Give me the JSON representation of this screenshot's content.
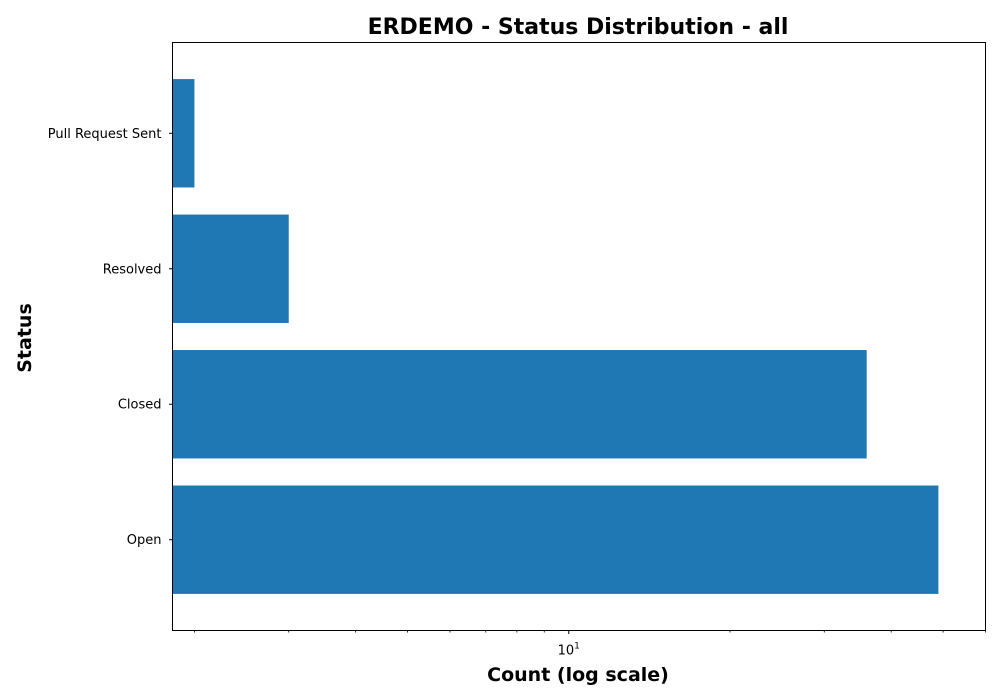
{
  "chart_data": {
    "type": "bar",
    "orientation": "horizontal",
    "title": "ERDEMO - Status Distribution - all",
    "xlabel": "Count (log scale)",
    "ylabel": "Status",
    "x_scale": "log",
    "xlim": [
      1.82,
      60
    ],
    "categories": [
      "Open",
      "Closed",
      "Resolved",
      "Pull Request Sent"
    ],
    "values": [
      49,
      36,
      3,
      2
    ],
    "x_major_ticks": [
      {
        "value": 10,
        "base": "10",
        "exponent": "1"
      }
    ],
    "x_minor_ticks": [
      2,
      3,
      4,
      5,
      6,
      7,
      8,
      9,
      20,
      30,
      40,
      50,
      60
    ],
    "bar_color": "#1f77b4",
    "grid": false,
    "legend": "none"
  }
}
